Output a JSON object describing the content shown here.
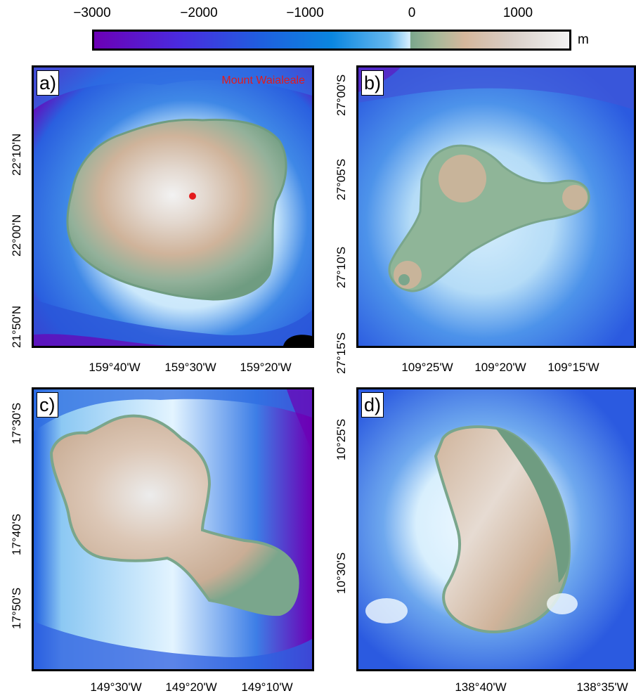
{
  "colorbar": {
    "ticks": [
      "−3000",
      "−2000",
      "−1000",
      "0",
      "1000"
    ],
    "unit": "m"
  },
  "panels": {
    "a": {
      "letter": "a)",
      "place_label": "Mount Waialeale",
      "x_ticks": [
        "159°40'W",
        "159°30'W",
        "159°20'W"
      ],
      "y_ticks": [
        "22°10'N",
        "22°00'N",
        "21°50'N"
      ]
    },
    "b": {
      "letter": "b)",
      "x_ticks": [
        "109°25'W",
        "109°20'W",
        "109°15'W"
      ],
      "y_ticks": [
        "27°00'S",
        "27°05'S",
        "27°10'S",
        "27°15'S"
      ]
    },
    "c": {
      "letter": "c)",
      "x_ticks": [
        "149°30'W",
        "149°20'W",
        "149°10'W"
      ],
      "y_ticks": [
        "17°30'S",
        "17°40'S",
        "17°50'S"
      ]
    },
    "d": {
      "letter": "d)",
      "x_ticks": [
        "138°40'W",
        "138°35'W"
      ],
      "y_ticks": [
        "10°25'S",
        "10°30'S"
      ]
    }
  },
  "colors": {
    "deep": "#6c00b5",
    "ocean": "#1f5fe0",
    "shallow": "#d9f0ff",
    "lowland": "#7aa68c",
    "upland": "#d5b79c",
    "peak": "#f3f3f3",
    "marker": "#e31a1c"
  }
}
